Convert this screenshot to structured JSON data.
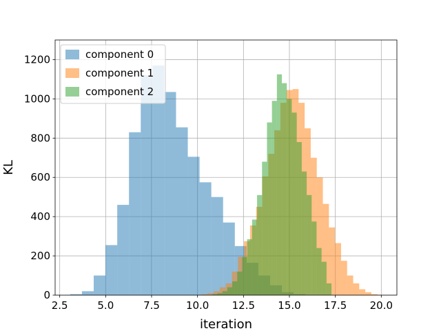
{
  "chart_data": {
    "type": "histogram",
    "title": "",
    "xlabel": "iteration",
    "ylabel": "KL",
    "xlim": [
      2.25,
      20.85
    ],
    "ylim": [
      0,
      1300
    ],
    "xticks": [
      2.5,
      5.0,
      7.5,
      10.0,
      12.5,
      15.0,
      17.5,
      20.0
    ],
    "xtick_labels": [
      "2.5",
      "5.0",
      "7.5",
      "10.0",
      "12.5",
      "15.0",
      "17.5",
      "20.0"
    ],
    "yticks": [
      0,
      200,
      400,
      600,
      800,
      1000,
      1200
    ],
    "ytick_labels": [
      "0",
      "200",
      "400",
      "600",
      "800",
      "1000",
      "1200"
    ],
    "grid": true,
    "legend_position": "top-left",
    "series": [
      {
        "name": "component 0",
        "color": "#1f77b4",
        "alpha": 0.5,
        "bin_edges": [
          3.07,
          3.71,
          4.35,
          4.99,
          5.63,
          6.27,
          6.91,
          7.55,
          8.19,
          8.83,
          9.47,
          10.11,
          10.75,
          11.39,
          12.03,
          12.67,
          13.31,
          13.95,
          14.59,
          15.23,
          15.87
        ],
        "counts": [
          5,
          20,
          100,
          255,
          460,
          830,
          1120,
          1170,
          1035,
          855,
          705,
          575,
          500,
          370,
          250,
          165,
          100,
          50,
          15,
          5
        ]
      },
      {
        "name": "component 1",
        "color": "#ff7f0e",
        "alpha": 0.5,
        "bin_edges": [
          10.22,
          10.55,
          10.88,
          11.21,
          11.54,
          11.87,
          12.2,
          12.53,
          12.86,
          13.19,
          13.52,
          13.85,
          14.18,
          14.51,
          14.84,
          15.17,
          15.5,
          15.83,
          16.16,
          16.49,
          16.82,
          17.15,
          17.48,
          17.81,
          18.14,
          18.47,
          18.8,
          19.13,
          19.46,
          19.79,
          20.12
        ],
        "counts": [
          5,
          10,
          20,
          40,
          60,
          120,
          195,
          275,
          355,
          450,
          605,
          720,
          840,
          980,
          1045,
          1050,
          980,
          850,
          700,
          600,
          465,
          345,
          265,
          175,
          100,
          60,
          30,
          15,
          5,
          2
        ]
      },
      {
        "name": "component 2",
        "color": "#2ca02c",
        "alpha": 0.5,
        "bin_edges": [
          10.81,
          11.08,
          11.35,
          11.62,
          11.89,
          12.16,
          12.43,
          12.7,
          12.97,
          13.24,
          13.51,
          13.78,
          14.05,
          14.32,
          14.59,
          14.86,
          15.13,
          15.4,
          15.67,
          15.94,
          16.21,
          16.48,
          16.75,
          17.02,
          17.29
        ],
        "counts": [
          5,
          10,
          20,
          40,
          70,
          120,
          195,
          285,
          385,
          510,
          680,
          880,
          990,
          1125,
          1080,
          1000,
          930,
          780,
          630,
          510,
          375,
          240,
          170,
          60
        ]
      }
    ]
  }
}
